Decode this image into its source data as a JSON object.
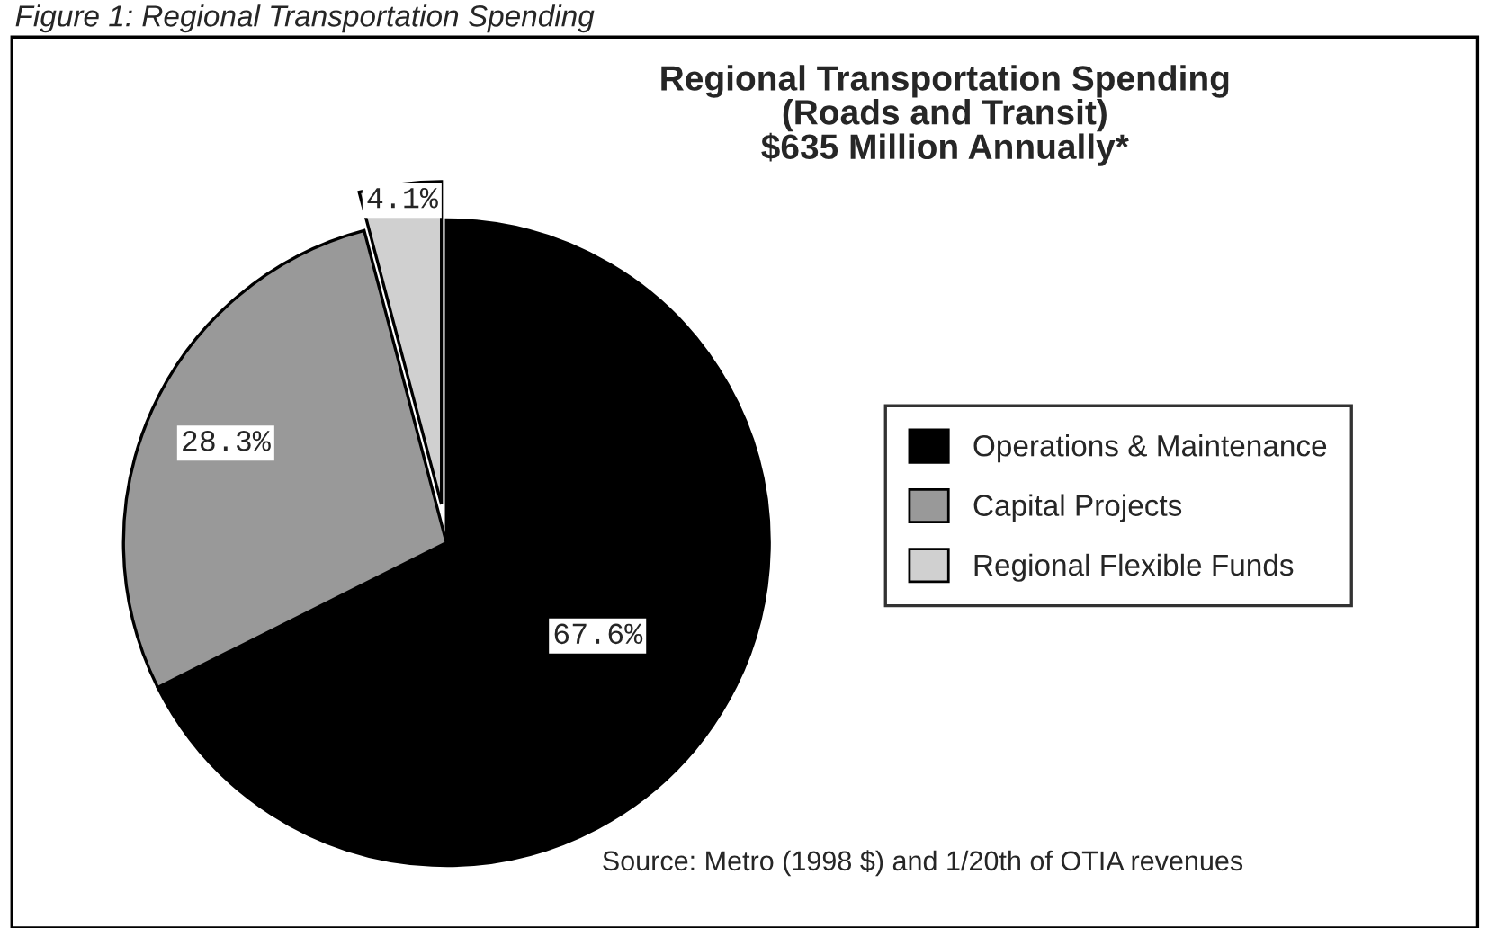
{
  "chart_data": {
    "type": "pie",
    "title": "Regional Transportation Spending\n(Roads and Transit)\n$635 Million Annually*",
    "categories": [
      "Operations & Maintenance",
      "Capital Projects",
      "Regional Flexible Funds"
    ],
    "values": [
      67.6,
      28.3,
      4.1
    ],
    "colors": [
      "#000000",
      "#999999",
      "#d0d0d0"
    ],
    "value_labels": [
      "67.6%",
      "28.3%",
      "4.1%"
    ],
    "legend": "right",
    "annotations": [
      "Figure 1: Regional Transportation Spending",
      "Source: Metro (1998 $) and 1/20th of OTIA revenues"
    ]
  }
}
